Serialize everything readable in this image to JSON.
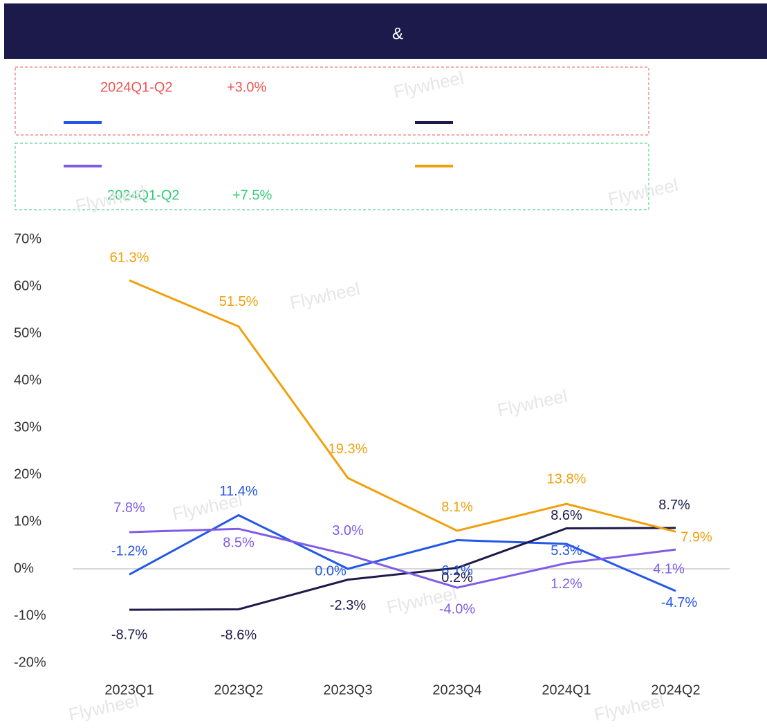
{
  "header": {
    "title": "&"
  },
  "watermark": "Flywheel",
  "notes": [
    {
      "label": "2024Q1-Q2",
      "value": "+3.0%",
      "color": "#ef5350"
    },
    {
      "label": "2024Q1-Q2",
      "value": "+7.5%",
      "color": "#2ecc71"
    }
  ],
  "chart_data": {
    "type": "line",
    "categories": [
      "2023Q1",
      "2023Q2",
      "2023Q3",
      "2023Q4",
      "2024Q1",
      "2024Q2"
    ],
    "series": [
      {
        "color": "#2456e8",
        "values": [
          -1.2,
          11.4,
          0.0,
          6.1,
          5.3,
          -4.7
        ],
        "value_labels": [
          "-1.2%",
          "11.4%",
          "0.0%",
          "6.1%",
          "5.3%",
          "-4.7%"
        ]
      },
      {
        "color": "#1b1a4a",
        "values": [
          -8.7,
          -8.6,
          -2.3,
          0.2,
          8.6,
          8.7
        ],
        "value_labels": [
          "-8.7%",
          "-8.6%",
          "-2.3%",
          "0.2%",
          "8.6%",
          "8.7%"
        ]
      },
      {
        "color": "#7e5ce8",
        "values": [
          7.8,
          8.5,
          3.0,
          -4.0,
          1.2,
          4.1
        ],
        "value_labels": [
          "7.8%",
          "8.5%",
          "3.0%",
          "-4.0%",
          "1.2%",
          "4.1%"
        ]
      },
      {
        "color": "#f0a00a",
        "values": [
          61.3,
          51.5,
          19.3,
          8.1,
          13.8,
          7.9
        ],
        "value_labels": [
          "61.3%",
          "51.5%",
          "19.3%",
          "8.1%",
          "13.8%",
          "7.9%"
        ]
      }
    ],
    "ylim": [
      -20,
      70
    ],
    "yticks": [
      {
        "value": -20,
        "label": "-20%"
      },
      {
        "value": -10,
        "label": "-10%"
      },
      {
        "value": 0,
        "label": "0%"
      },
      {
        "value": 10,
        "label": "10%"
      },
      {
        "value": 20,
        "label": "20%"
      },
      {
        "value": 30,
        "label": "30%"
      },
      {
        "value": 40,
        "label": "40%"
      },
      {
        "value": 50,
        "label": "50%"
      },
      {
        "value": 60,
        "label": "60%"
      },
      {
        "value": 70,
        "label": "70%"
      }
    ]
  }
}
